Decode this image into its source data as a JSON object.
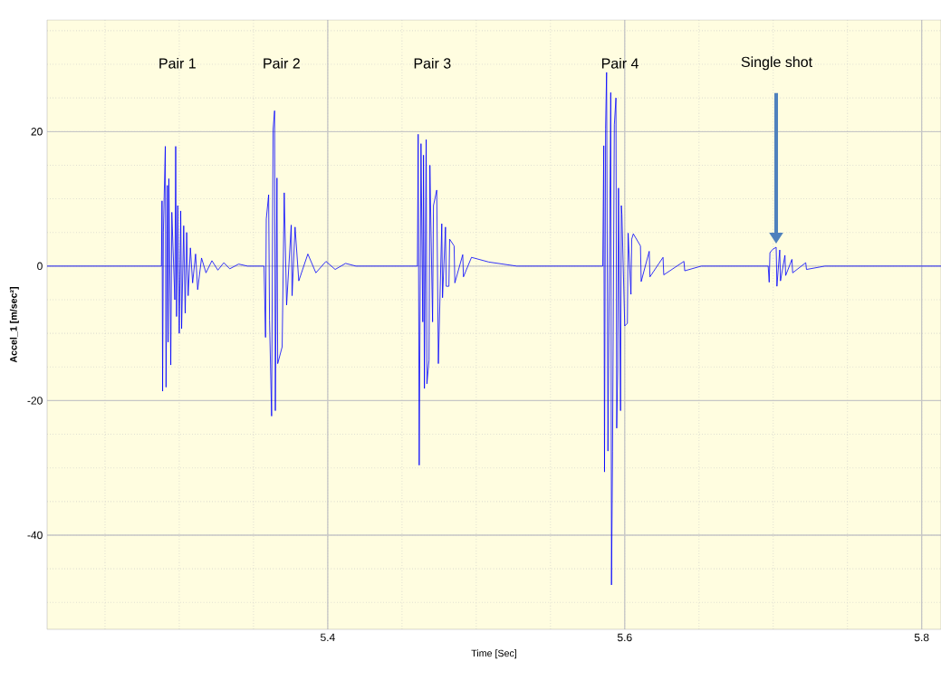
{
  "chart_data": {
    "type": "line",
    "xlabel": "Time [Sec]",
    "ylabel": "Accel_1 [m/sec²]",
    "xlim": [
      5.211,
      5.813
    ],
    "ylim": [
      -54,
      36.6
    ],
    "xticks": [
      5.4,
      5.6,
      5.8
    ],
    "yticks": [
      -40,
      -20,
      0,
      20
    ],
    "grid": true,
    "marker": "none",
    "line_style": "solid",
    "series": [
      {
        "color": "#0000ff",
        "x": [
          5.211,
          5.288,
          5.2884,
          5.2888,
          5.2893,
          5.2906,
          5.2911,
          5.292,
          5.2925,
          5.293,
          5.2943,
          5.295,
          5.297,
          5.2976,
          5.2982,
          5.299,
          5.3,
          5.301,
          5.3016,
          5.303,
          5.304,
          5.305,
          5.306,
          5.3075,
          5.309,
          5.311,
          5.3124,
          5.315,
          5.318,
          5.322,
          5.326,
          5.33,
          5.334,
          5.34,
          5.346,
          5.3571,
          5.3581,
          5.3586,
          5.3602,
          5.3608,
          5.3622,
          5.3632,
          5.3642,
          5.3647,
          5.3658,
          5.3663,
          5.3693,
          5.3707,
          5.3723,
          5.3754,
          5.376,
          5.378,
          5.3805,
          5.3866,
          5.392,
          5.3988,
          5.405,
          5.412,
          5.419,
          5.4604,
          5.4609,
          5.4616,
          5.4628,
          5.464,
          5.4645,
          5.4651,
          5.4663,
          5.4668,
          5.4682,
          5.4688,
          5.4706,
          5.4712,
          5.4734,
          5.4745,
          5.4768,
          5.4773,
          5.4793,
          5.4798,
          5.4816,
          5.4821,
          5.4851,
          5.4856,
          5.4909,
          5.4914,
          5.4968,
          5.5085,
          5.5273,
          5.5852,
          5.5859,
          5.5864,
          5.5871,
          5.5878,
          5.5887,
          5.5906,
          5.5911,
          5.5918,
          5.593,
          5.5941,
          5.5946,
          5.5953,
          5.5958,
          5.5972,
          5.5977,
          5.5981,
          5.6,
          5.6018,
          5.6023,
          5.6042,
          5.6047,
          5.6058,
          5.6106,
          5.6111,
          5.6165,
          5.617,
          5.6258,
          5.6263,
          5.6399,
          5.6404,
          5.6516,
          5.6966,
          5.6973,
          5.6978,
          5.6997,
          5.702,
          5.7025,
          5.7044,
          5.7049,
          5.7079,
          5.7084,
          5.7126,
          5.7131,
          5.7219,
          5.7224,
          5.7348,
          5.813
        ],
        "values": [
          0,
          0,
          9.7,
          -18.6,
          5,
          17.8,
          -18,
          12,
          -11.3,
          13,
          -14.7,
          8,
          -5,
          17.8,
          -7.5,
          9,
          -10,
          8.2,
          -9.3,
          6,
          -7,
          5,
          -4.4,
          2.7,
          -2.5,
          1.8,
          -3.5,
          1.2,
          -1,
          0.8,
          -0.6,
          0.5,
          -0.4,
          0.3,
          0,
          0,
          -10.6,
          7,
          10.6,
          -8,
          -22.3,
          20.3,
          23.1,
          -21.5,
          13.1,
          -14.5,
          -12,
          10.9,
          -5.8,
          6.1,
          -4.4,
          5.8,
          -2.2,
          1.8,
          -1,
          0.7,
          -0.5,
          0.4,
          0,
          0,
          19.6,
          -29.6,
          18.2,
          -8.3,
          16.5,
          -18.2,
          18.8,
          -17.5,
          -14,
          15,
          -8.3,
          9,
          11.3,
          -14.5,
          6.3,
          -4.7,
          5.8,
          -3,
          -3,
          4,
          3,
          -2.5,
          1.7,
          -1.6,
          1.3,
          0.6,
          0,
          0,
          17.9,
          -30.6,
          20.4,
          28.8,
          -27.5,
          25.8,
          -47.4,
          -27.5,
          21,
          25,
          -24.1,
          -15.5,
          11.6,
          -21.5,
          9,
          7.7,
          -8.9,
          -8.5,
          4.9,
          -4.2,
          4,
          4.8,
          3,
          -2.3,
          2.2,
          -1.6,
          1.3,
          -1.3,
          0.7,
          -0.7,
          0,
          0,
          -2.4,
          2,
          2.5,
          2.8,
          -3,
          2.4,
          -2.2,
          1.6,
          -1.4,
          1,
          -1,
          0.5,
          -0.5,
          0,
          0
        ]
      }
    ],
    "annotations": [
      "Pair 1",
      "Pair 2",
      "Pair 3",
      "Pair 4",
      "Single shot"
    ]
  }
}
